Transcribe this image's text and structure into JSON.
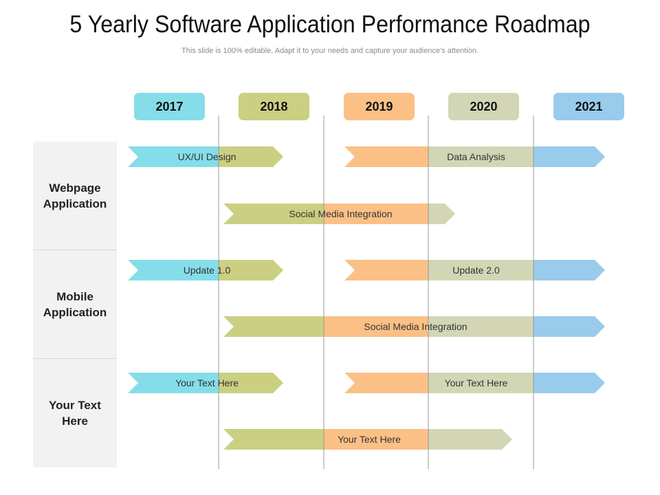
{
  "title": "5 Yearly Software Application Performance Roadmap",
  "subtitle": "This slide is 100% editable. Adapt it to your needs and capture your audience's attention.",
  "years": [
    {
      "label": "2017",
      "color": "#84DDE8"
    },
    {
      "label": "2018",
      "color": "#CBCF82"
    },
    {
      "label": "2019",
      "color": "#FBC086"
    },
    {
      "label": "2020",
      "color": "#D2D6B4"
    },
    {
      "label": "2021",
      "color": "#99CCEC"
    }
  ],
  "categories": [
    {
      "label": "Webpage Application"
    },
    {
      "label": "Mobile Application"
    },
    {
      "label": "Your Text Here"
    }
  ],
  "bars": [
    {
      "label": "UX/UI Design",
      "category": 0
    },
    {
      "label": "Data Analysis",
      "category": 0
    },
    {
      "label": "Social Media Integration",
      "category": 0
    },
    {
      "label": "Update 1.0",
      "category": 1
    },
    {
      "label": "Update 2.0",
      "category": 1
    },
    {
      "label": "Social Media Integration",
      "category": 1
    },
    {
      "label": "Your Text Here",
      "category": 2
    },
    {
      "label": "Your Text Here",
      "category": 2
    },
    {
      "label": "Your Text Here",
      "category": 2
    }
  ]
}
